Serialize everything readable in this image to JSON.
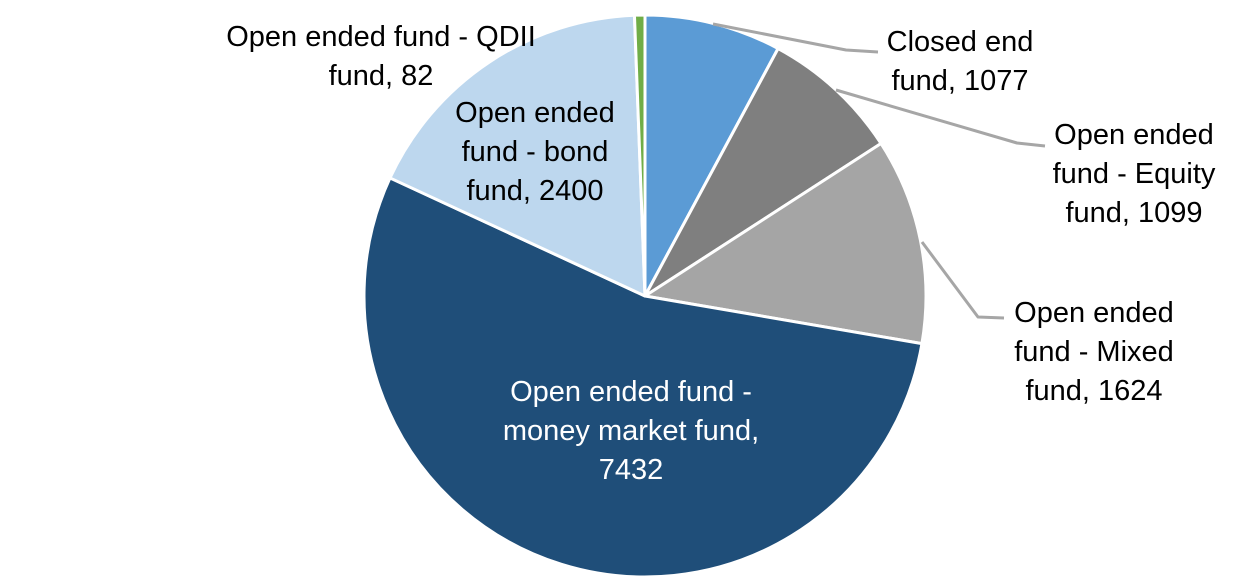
{
  "chart_data": {
    "type": "pie",
    "title": "",
    "direction": "clockwise",
    "start_angle_deg": 0,
    "total": 13714,
    "background": "#FFFFFF",
    "leader_line_color": "#A6A6A6",
    "slice_border_color": "#FFFFFF",
    "slices": [
      {
        "id": "closed-end-fund",
        "label": "Closed end fund",
        "value": 1077,
        "color": "#5B9BD5",
        "label_lines": [
          "Closed end",
          "fund, 1077"
        ],
        "label_placement": "outside",
        "label_color": "#000000",
        "has_leader": true
      },
      {
        "id": "equity-fund",
        "label": "Open ended fund - Equity fund",
        "value": 1099,
        "color": "#7F7F7F",
        "label_lines": [
          "Open ended",
          "fund - Equity",
          "fund, 1099"
        ],
        "label_placement": "outside",
        "label_color": "#000000",
        "has_leader": true
      },
      {
        "id": "mixed-fund",
        "label": "Open ended fund - Mixed fund",
        "value": 1624,
        "color": "#A5A5A5",
        "label_lines": [
          "Open ended",
          "fund - Mixed",
          "fund, 1624"
        ],
        "label_placement": "outside",
        "label_color": "#000000",
        "has_leader": true
      },
      {
        "id": "money-market-fund",
        "label": "Open ended fund - money market fund",
        "value": 7432,
        "color": "#1F4E79",
        "label_lines": [
          "Open ended fund -",
          "money market fund,",
          "7432"
        ],
        "label_placement": "inside",
        "label_color": "#FFFFFF",
        "has_leader": false
      },
      {
        "id": "bond-fund",
        "label": "Open ended fund - bond fund",
        "value": 2400,
        "color": "#BDD7EE",
        "label_lines": [
          "Open ended",
          "fund - bond",
          "fund, 2400"
        ],
        "label_placement": "inside",
        "label_color": "#000000",
        "has_leader": false
      },
      {
        "id": "qdii-fund",
        "label": "Open ended fund - QDII fund",
        "value": 82,
        "color": "#70AD47",
        "label_lines": [
          "Open ended fund - QDII",
          "fund, 82"
        ],
        "label_placement": "outside",
        "label_color": "#000000",
        "has_leader": false
      }
    ]
  }
}
